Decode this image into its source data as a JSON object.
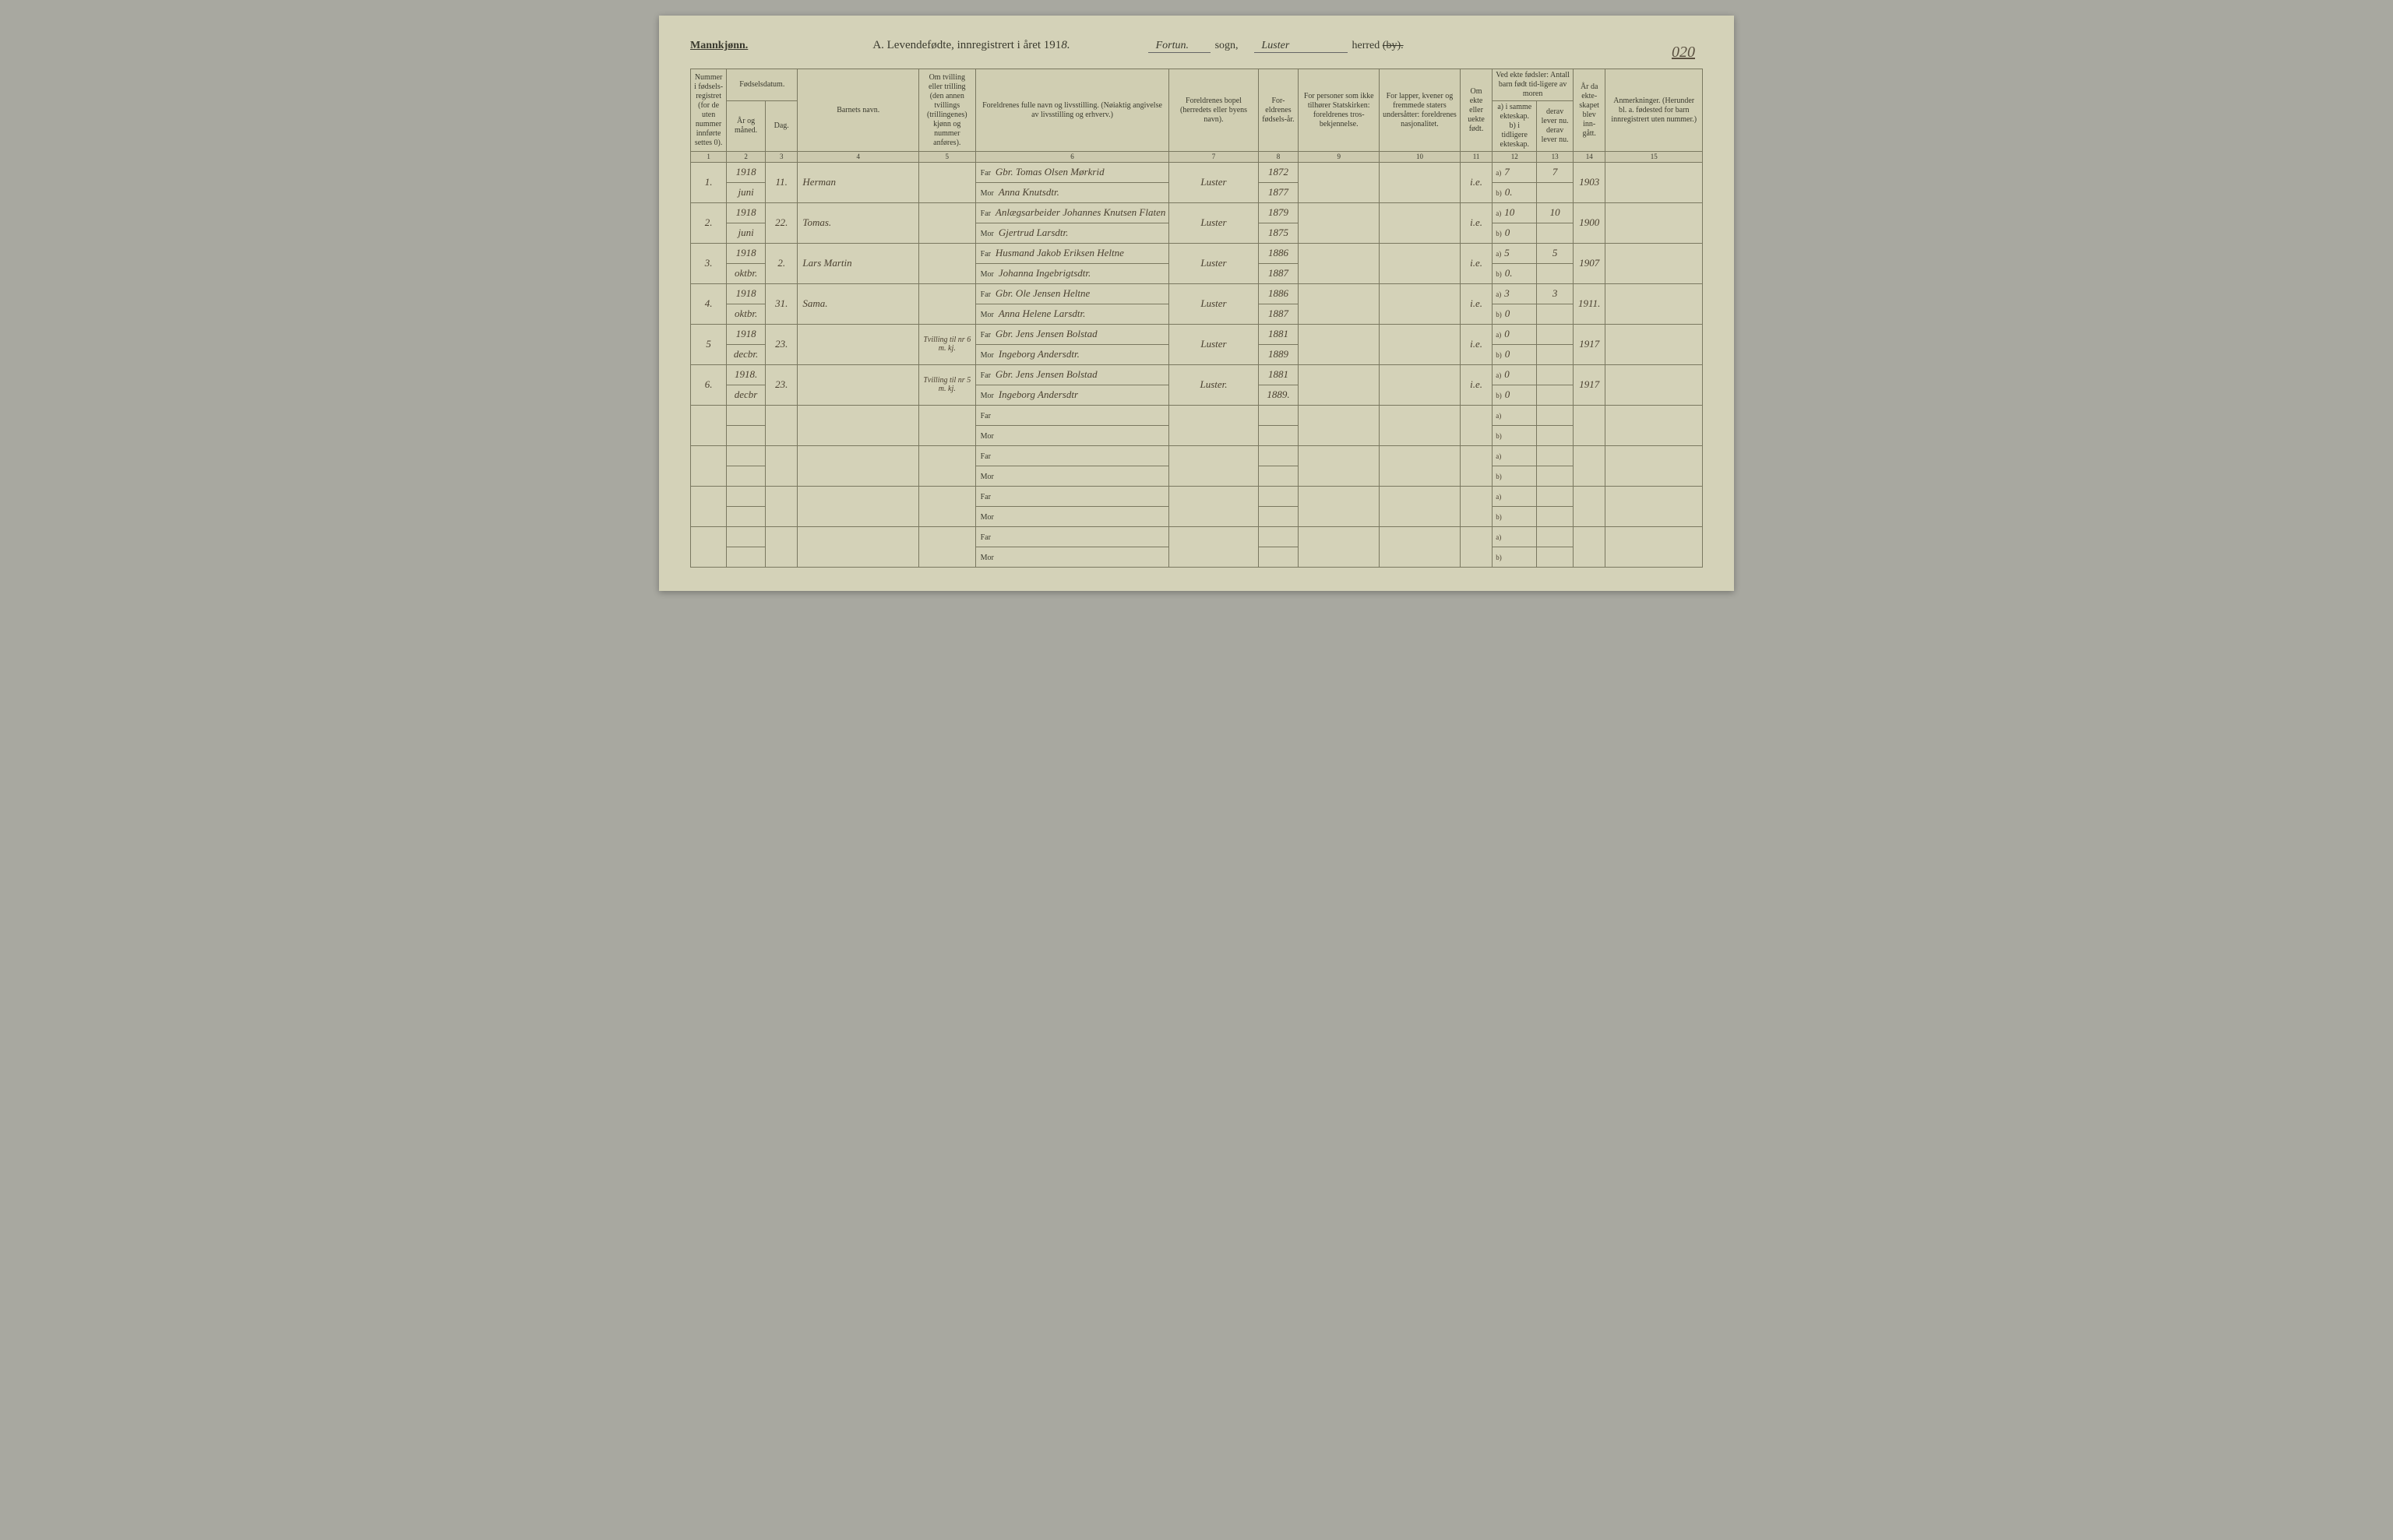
{
  "page_number": "020",
  "header": {
    "gender": "Mannkjønn.",
    "title_prefix": "A.  Levendefødte, innregistrert i året 191",
    "year_suffix": "8.",
    "sogn_value": "Fortun.",
    "sogn_label": "sogn,",
    "herred_value": "Luster",
    "herred_label_plain": "herred ",
    "herred_label_strike": "(by)."
  },
  "columns": {
    "c1": "Nummer i fødsels-registret (for de uten nummer innførte settes 0).",
    "c2_group": "Fødselsdatum.",
    "c2": "År og måned.",
    "c3": "Dag.",
    "c4": "Barnets navn.",
    "c5": "Om tvilling eller trilling (den annen tvillings (trillingenes) kjønn og nummer anføres).",
    "c6": "Foreldrenes fulle navn og livsstilling. (Nøiaktig angivelse av livsstilling og erhverv.)",
    "c7": "Foreldrenes bopel (herredets eller byens navn).",
    "c8": "For-eldrenes fødsels-år.",
    "c9": "For personer som ikke tilhører Statskirken: foreldrenes tros-bekjennelse.",
    "c10": "For lapper, kvener og fremmede staters undersåtter: foreldrenes nasjonalitet.",
    "c11": "Om ekte eller uekte født.",
    "c12_13_group": "Ved ekte fødsler: Antall barn født tid-ligere av moren",
    "c12a": "a) i samme ekteskap.",
    "c12b": "b) i tidligere ekteskap.",
    "c13a": "derav lever nu.",
    "c13b": "derav lever nu.",
    "c14": "År da ekte-skapet blev inn-gått.",
    "c15": "Anmerkninger. (Herunder bl. a. fødested for barn innregistrert uten nummer.)"
  },
  "colnums": [
    "1",
    "2",
    "3",
    "4",
    "5",
    "6",
    "7",
    "8",
    "9",
    "10",
    "11",
    "12",
    "13",
    "14",
    "15"
  ],
  "rows": [
    {
      "num": "1.",
      "year_month_top": "1918",
      "year_month_bot": "juni",
      "day": "11.",
      "name": "Herman",
      "twin": "",
      "far": "Gbr. Tomas Olsen Mørkrid",
      "mor": "Anna Knutsdtr.",
      "bopel": "Luster",
      "far_year": "1872",
      "mor_year": "1877",
      "c9": "",
      "c10": "",
      "ekte": "i.e.",
      "a12": "7",
      "b12": "0.",
      "a13": "7",
      "b13": "",
      "c14": "1903",
      "c15": ""
    },
    {
      "num": "2.",
      "year_month_top": "1918",
      "year_month_bot": "juni",
      "day": "22.",
      "name": "Tomas.",
      "twin": "",
      "far": "Anlægsarbeider Johannes Knutsen Flaten",
      "mor": "Gjertrud Larsdtr.",
      "bopel": "Luster",
      "far_year": "1879",
      "mor_year": "1875",
      "c9": "",
      "c10": "",
      "ekte": "i.e.",
      "a12": "10",
      "b12": "0",
      "a13": "10",
      "b13": "",
      "c14": "1900",
      "c15": ""
    },
    {
      "num": "3.",
      "year_month_top": "1918",
      "year_month_bot": "oktbr.",
      "day": "2.",
      "name": "Lars Martin",
      "twin": "",
      "far": "Husmand Jakob Eriksen Heltne",
      "mor": "Johanna Ingebrigtsdtr.",
      "bopel": "Luster",
      "far_year": "1886",
      "mor_year": "1887",
      "c9": "",
      "c10": "",
      "ekte": "i.e.",
      "a12": "5",
      "b12": "0.",
      "a13": "5",
      "b13": "",
      "c14": "1907",
      "c15": ""
    },
    {
      "num": "4.",
      "year_month_top": "1918",
      "year_month_bot": "oktbr.",
      "day": "31.",
      "name": "Sama.",
      "twin": "",
      "far": "Gbr. Ole Jensen Heltne",
      "mor": "Anna Helene Larsdtr.",
      "bopel": "Luster",
      "far_year": "1886",
      "mor_year": "1887",
      "c9": "",
      "c10": "",
      "ekte": "i.e.",
      "a12": "3",
      "b12": "0",
      "a13": "3",
      "b13": "",
      "c14": "1911.",
      "c15": ""
    },
    {
      "num": "5",
      "year_month_top": "1918",
      "year_month_bot": "decbr.",
      "day": "23.",
      "name": "",
      "twin": "Tvilling til nr 6 m. kj.",
      "far": "Gbr. Jens Jensen Bolstad",
      "mor": "Ingeborg Andersdtr.",
      "bopel": "Luster",
      "far_year": "1881",
      "mor_year": "1889",
      "c9": "",
      "c10": "",
      "ekte": "i.e.",
      "a12": "0",
      "b12": "0",
      "a13": "",
      "b13": "",
      "c14": "1917",
      "c15": ""
    },
    {
      "num": "6.",
      "year_month_top": "1918.",
      "year_month_bot": "decbr",
      "day": "23.",
      "name": "",
      "twin": "Tvilling til nr 5 m. kj.",
      "far": "Gbr. Jens Jensen Bolstad",
      "mor": "Ingeborg Andersdtr",
      "bopel": "Luster.",
      "far_year": "1881",
      "mor_year": "1889.",
      "c9": "",
      "c10": "",
      "ekte": "i.e.",
      "a12": "0",
      "b12": "0",
      "a13": "",
      "b13": "",
      "c14": "1917",
      "c15": ""
    }
  ],
  "empty_rows": 4,
  "labels": {
    "far": "Far",
    "mor": "Mor",
    "a": "a)",
    "b": "b)"
  },
  "colors": {
    "paper": "#d4d2b8",
    "ink_printed": "#3a3a2e",
    "ink_hand": "#4a4030",
    "border": "#7a7860",
    "background": "#a8a8a0"
  }
}
